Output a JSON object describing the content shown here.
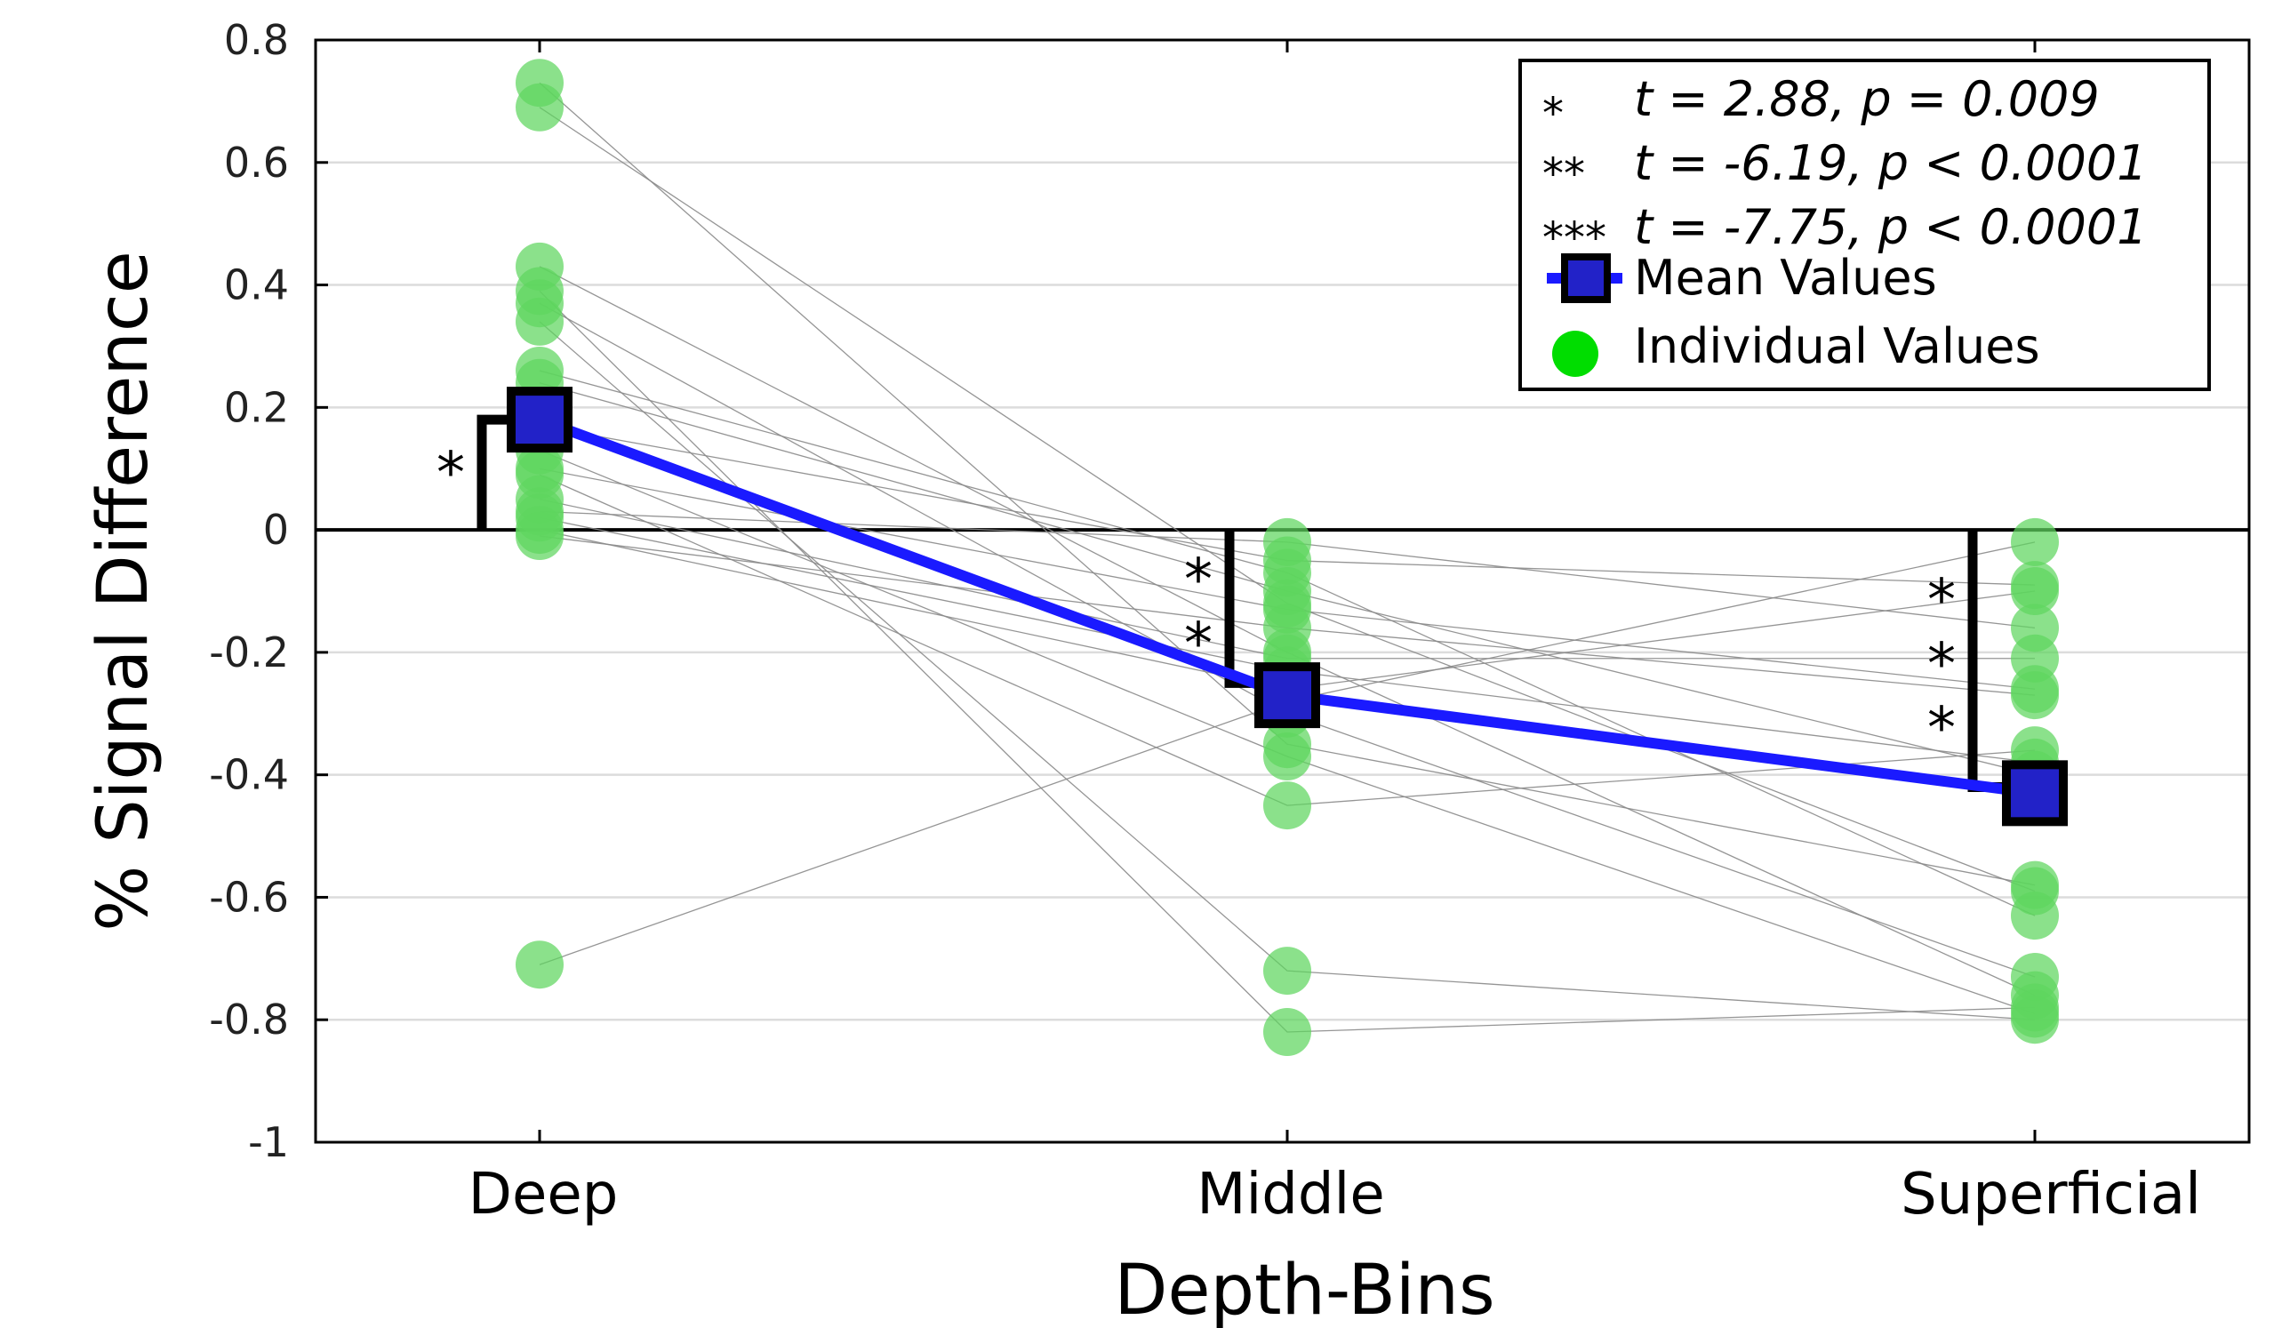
{
  "chart_data": {
    "type": "scatter",
    "categories": [
      "Deep",
      "Middle",
      "Superficial"
    ],
    "xlabel": "Depth-Bins",
    "ylabel": "% Signal Difference",
    "ylim": [
      -1,
      0.8
    ],
    "yticks": [
      0.8,
      0.6,
      0.4,
      0.2,
      0,
      -0.2,
      -0.4,
      -0.6,
      -0.8,
      -1
    ],
    "grid": true,
    "zero_line": true,
    "legend_position": "top-right",
    "stats": [
      {
        "stars": "*",
        "text": "t =  2.88, p = 0.009"
      },
      {
        "stars": "**",
        "text": "t = -6.19, p < 0.0001"
      },
      {
        "stars": "***",
        "text": "t = -7.75, p < 0.0001"
      }
    ],
    "series": [
      {
        "name": "Mean Values",
        "values": [
          0.18,
          -0.27,
          -0.43
        ],
        "color": "#1a1aff",
        "marker_color": "#2222c8"
      },
      {
        "name": "Individual Values",
        "color": "#5ed65e",
        "subjects": [
          [
            0.73,
            -0.35,
            -0.58
          ],
          [
            0.69,
            -0.12,
            -0.59
          ],
          [
            0.43,
            -0.2,
            -0.76
          ],
          [
            0.39,
            -0.82,
            -0.78
          ],
          [
            0.37,
            -0.3,
            -0.73
          ],
          [
            0.34,
            -0.72,
            -0.8
          ],
          [
            0.26,
            -0.07,
            -0.63
          ],
          [
            0.24,
            -0.1,
            -0.4
          ],
          [
            0.17,
            -0.05,
            -0.09
          ],
          [
            0.13,
            -0.37,
            -0.79
          ],
          [
            0.1,
            -0.13,
            -0.26
          ],
          [
            0.09,
            -0.45,
            -0.36
          ],
          [
            0.05,
            -0.21,
            -0.21
          ],
          [
            0.03,
            -0.02,
            -0.16
          ],
          [
            0.02,
            -0.23,
            -0.38
          ],
          [
            0.0,
            -0.26,
            -0.1
          ],
          [
            -0.01,
            -0.16,
            -0.27
          ],
          [
            -0.71,
            -0.28,
            -0.02
          ]
        ]
      }
    ],
    "significance": [
      {
        "label": "*",
        "from": 0,
        "to": 0.18
      },
      {
        "label": "**",
        "from": 0,
        "to": -0.25
      },
      {
        "label": "***",
        "from": 0,
        "to": -0.42
      }
    ]
  }
}
